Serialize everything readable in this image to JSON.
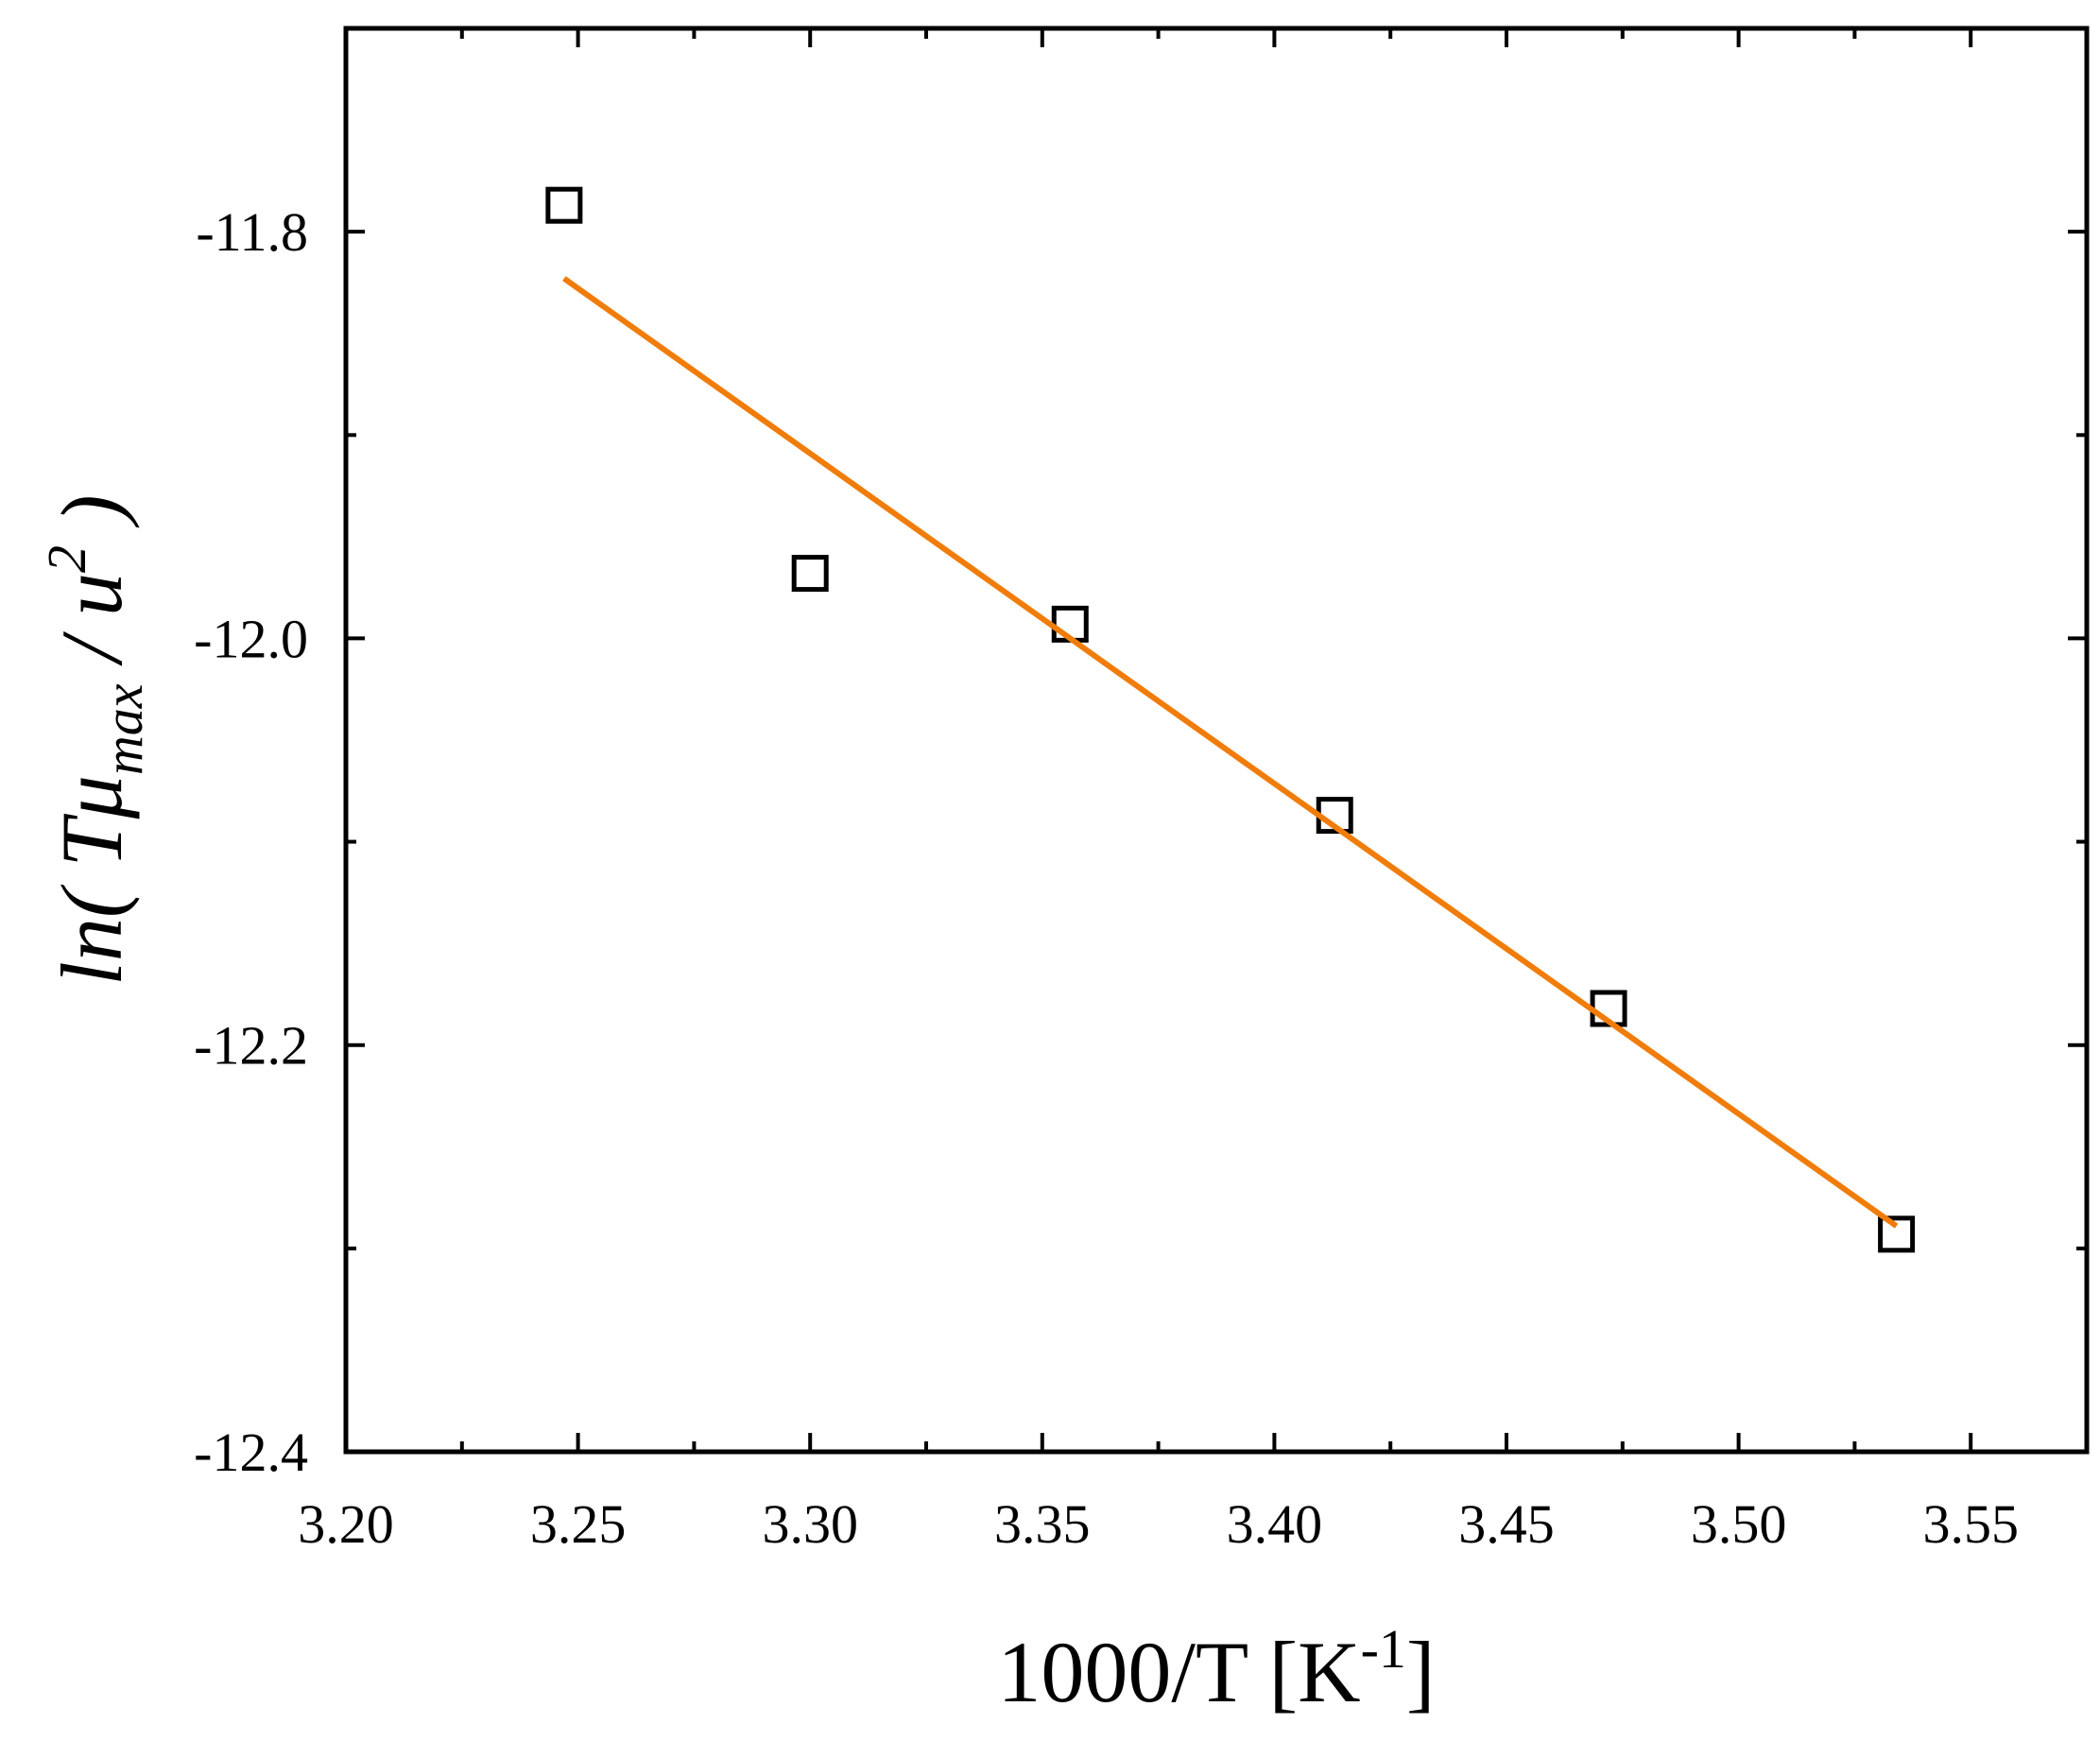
{
  "chart_data": {
    "type": "scatter",
    "xlabel": {
      "text": "1000/T [K",
      "superscript": "-1",
      "suffix": "]"
    },
    "ylabel": {
      "prefix": "ln( Tμ",
      "subscript": "max",
      "middle": " / u",
      "superscript": "2",
      "suffix": " )"
    },
    "xlim": [
      3.2,
      3.575
    ],
    "ylim": [
      -12.4,
      -11.7
    ],
    "x_ticks": [
      3.2,
      3.25,
      3.3,
      3.35,
      3.4,
      3.45,
      3.5,
      3.55
    ],
    "x_tick_labels": [
      "3.20",
      "3.25",
      "3.30",
      "3.35",
      "3.40",
      "3.45",
      "3.50",
      "3.55"
    ],
    "x_minor_ticks": [
      3.225,
      3.275,
      3.325,
      3.375,
      3.425,
      3.475,
      3.525
    ],
    "y_ticks": [
      -12.4,
      -12.2,
      -12.0,
      -11.8
    ],
    "y_tick_labels": [
      "-12.4",
      "-12.2",
      "-12.0",
      "-11.8"
    ],
    "y_minor_ticks": [
      -12.3,
      -12.1,
      -11.9
    ],
    "grid": false,
    "series": [
      {
        "kind": "scatter",
        "marker": "open-square",
        "color": "#000000",
        "points": [
          {
            "x": 3.247,
            "y": -11.787
          },
          {
            "x": 3.3,
            "y": -11.968
          },
          {
            "x": 3.356,
            "y": -11.993
          },
          {
            "x": 3.413,
            "y": -12.087
          },
          {
            "x": 3.472,
            "y": -12.182
          },
          {
            "x": 3.534,
            "y": -12.293
          }
        ]
      },
      {
        "kind": "line",
        "color": "#f07c0a",
        "points": [
          {
            "x": 3.247,
            "y": -11.823
          },
          {
            "x": 3.534,
            "y": -12.289
          }
        ]
      }
    ]
  }
}
